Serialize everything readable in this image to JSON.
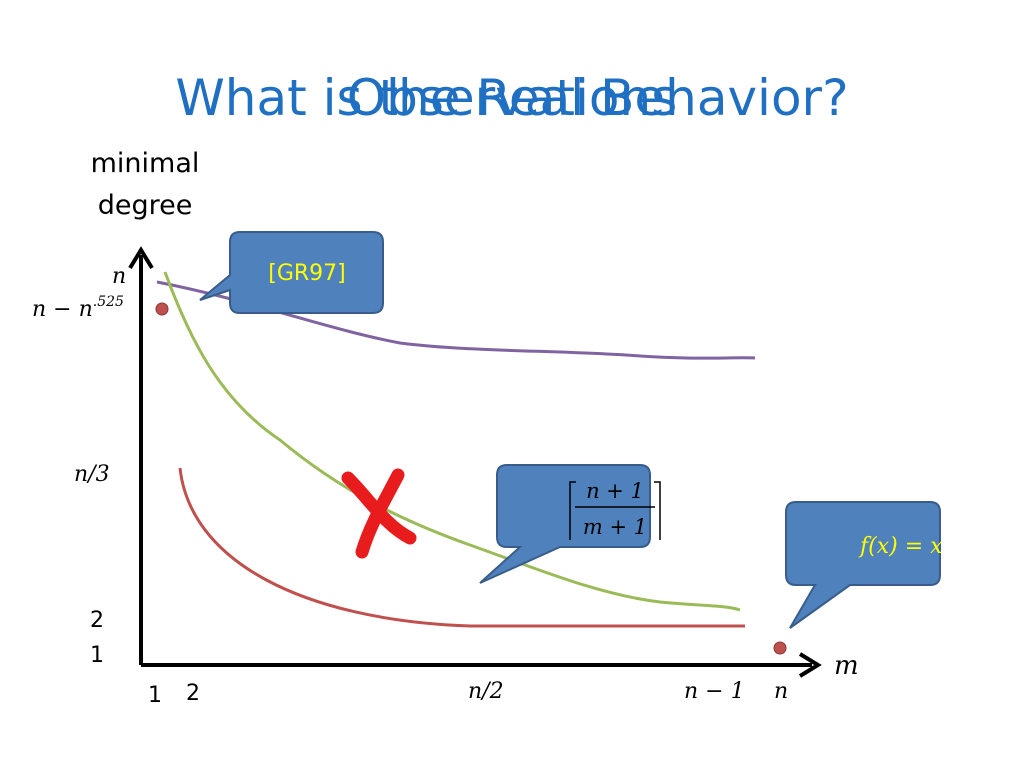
{
  "header": {
    "title": "What is the Real Behavior?",
    "overlay_title": "Observations"
  },
  "axes": {
    "y_label": [
      "minimal",
      "degree"
    ],
    "x_label": "m",
    "y_ticks": [
      "n",
      {
        "base": "n − n",
        "exponent": ".525"
      },
      "n/3",
      "2",
      "1"
    ],
    "x_ticks": [
      "1",
      "2",
      "n/2",
      "n − 1",
      "n"
    ]
  },
  "callouts": {
    "reference": "[GR97]",
    "formula": {
      "numerator": "n + 1",
      "denominator": "m + 1"
    },
    "identity": "f(x) = x"
  }
}
